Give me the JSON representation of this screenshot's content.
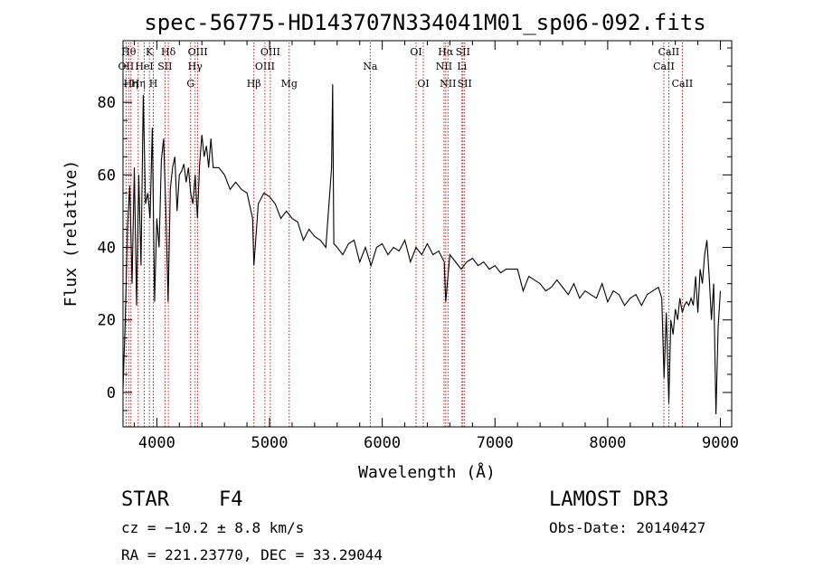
{
  "chart_data": {
    "type": "line",
    "title": "spec-56775-HD143707N334041M01_sp06-092.fits",
    "xlabel": "Wavelength (Å)",
    "ylabel": "Flux (relative)",
    "xlim": [
      3700,
      9100
    ],
    "ylim": [
      -9.5,
      97
    ],
    "x_ticks": [
      4000,
      5000,
      6000,
      7000,
      8000,
      9000
    ],
    "y_ticks": [
      0,
      20,
      40,
      60,
      80
    ],
    "grid": false,
    "series": [
      {
        "name": "flux",
        "x": [
          3700,
          3720,
          3740,
          3760,
          3780,
          3800,
          3820,
          3840,
          3860,
          3880,
          3900,
          3920,
          3940,
          3960,
          3980,
          4000,
          4020,
          4040,
          4060,
          4080,
          4100,
          4120,
          4140,
          4160,
          4180,
          4200,
          4220,
          4240,
          4260,
          4280,
          4300,
          4320,
          4340,
          4360,
          4380,
          4400,
          4420,
          4440,
          4460,
          4480,
          4500,
          4550,
          4600,
          4650,
          4700,
          4750,
          4800,
          4850,
          4861,
          4900,
          4950,
          5000,
          5050,
          5100,
          5150,
          5200,
          5250,
          5300,
          5350,
          5400,
          5450,
          5500,
          5550,
          5560,
          5570,
          5600,
          5650,
          5700,
          5750,
          5800,
          5850,
          5900,
          5950,
          6000,
          6050,
          6100,
          6150,
          6200,
          6250,
          6300,
          6350,
          6400,
          6450,
          6500,
          6550,
          6563,
          6600,
          6650,
          6700,
          6750,
          6800,
          6850,
          6900,
          6950,
          7000,
          7050,
          7100,
          7150,
          7200,
          7250,
          7300,
          7350,
          7400,
          7450,
          7500,
          7550,
          7600,
          7650,
          7700,
          7750,
          7800,
          7850,
          7900,
          7950,
          8000,
          8050,
          8100,
          8150,
          8200,
          8250,
          8300,
          8350,
          8400,
          8450,
          8480,
          8500,
          8520,
          8542,
          8560,
          8580,
          8600,
          8620,
          8640,
          8662,
          8680,
          8700,
          8720,
          8740,
          8760,
          8780,
          8800,
          8820,
          8840,
          8860,
          8880,
          8900,
          8920,
          8940,
          8960,
          8980,
          9000
        ],
        "values": [
          1,
          20,
          46,
          57,
          30,
          62,
          24,
          60,
          35,
          82,
          52,
          55,
          48,
          73,
          25,
          48,
          40,
          64,
          70,
          50,
          25,
          56,
          62,
          65,
          50,
          60,
          61,
          63,
          58,
          62,
          55,
          52,
          60,
          48,
          63,
          71,
          65,
          68,
          62,
          70,
          62,
          62,
          60,
          56,
          58,
          56,
          55,
          48,
          35,
          52,
          55,
          54,
          52,
          48,
          50,
          48,
          47,
          42,
          45,
          43,
          42,
          40,
          62,
          85,
          41,
          40,
          38,
          41,
          42,
          36,
          40,
          35,
          40,
          41,
          38,
          40,
          39,
          42,
          36,
          40,
          38,
          41,
          38,
          39,
          36,
          25,
          38,
          36,
          34,
          36,
          37,
          35,
          36,
          34,
          35,
          33,
          34,
          34,
          34,
          28,
          32,
          31,
          30,
          28,
          29,
          31,
          29,
          27,
          30,
          26,
          28,
          27,
          26,
          30,
          25,
          28,
          27,
          24,
          26,
          27,
          24,
          27,
          28,
          29,
          26,
          4,
          22,
          -3,
          20,
          16,
          23,
          20,
          26,
          22,
          24,
          25,
          24,
          26,
          24,
          32,
          22,
          34,
          30,
          38,
          42,
          32,
          20,
          30,
          -6,
          18,
          28
        ]
      }
    ],
    "lines": [
      {
        "wl": 3727,
        "label": "OII",
        "row": 1
      },
      {
        "wl": 3750,
        "label": "Hθ",
        "row": 0
      },
      {
        "wl": 3770,
        "label": "Hη",
        "row": 2
      },
      {
        "wl": 3835,
        "label": "Hη",
        "row": 2
      },
      {
        "wl": 3889,
        "label": "HeI",
        "row": 1
      },
      {
        "wl": 3934,
        "label": "K",
        "row": 0
      },
      {
        "wl": 3969,
        "label": "H",
        "row": 2
      },
      {
        "wl": 4072,
        "label": "SII",
        "row": 1
      },
      {
        "wl": 4102,
        "label": "Hδ",
        "row": 0
      },
      {
        "wl": 4300,
        "label": "G",
        "row": 2
      },
      {
        "wl": 4340,
        "label": "Hγ",
        "row": 1
      },
      {
        "wl": 4363,
        "label": "OIII",
        "row": 0
      },
      {
        "wl": 4861,
        "label": "Hβ",
        "row": 2
      },
      {
        "wl": 4959,
        "label": "OIII",
        "row": 1
      },
      {
        "wl": 5007,
        "label": "OIII",
        "row": 0
      },
      {
        "wl": 5175,
        "label": "Mg",
        "row": 2
      },
      {
        "wl": 5893,
        "label": "Na",
        "row": 1
      },
      {
        "wl": 6300,
        "label": "OI",
        "row": 0
      },
      {
        "wl": 6364,
        "label": "OI",
        "row": 2
      },
      {
        "wl": 6548,
        "label": "NII",
        "row": 1
      },
      {
        "wl": 6563,
        "label": "Hα",
        "row": 0
      },
      {
        "wl": 6583,
        "label": "NII",
        "row": 2
      },
      {
        "wl": 6707,
        "label": "Li",
        "row": 1
      },
      {
        "wl": 6716,
        "label": "SII",
        "row": 0
      },
      {
        "wl": 6731,
        "label": "SII",
        "row": 2
      },
      {
        "wl": 8498,
        "label": "CaII",
        "row": 1
      },
      {
        "wl": 8542,
        "label": "CaII",
        "row": 0
      },
      {
        "wl": 8662,
        "label": "CaII",
        "row": 2
      }
    ]
  },
  "info": {
    "object_class": "STAR",
    "subclass": "F4",
    "survey": "LAMOST DR3",
    "velocity": "cz = −10.2 ± 8.8 km/s",
    "obs_date": "Obs-Date: 20140427",
    "coordinates": "RA = 221.23770, DEC =  33.29044"
  },
  "colors": {
    "background": "#ffffff",
    "line": "#000000",
    "marker": "#c00000",
    "text": "#000000"
  }
}
